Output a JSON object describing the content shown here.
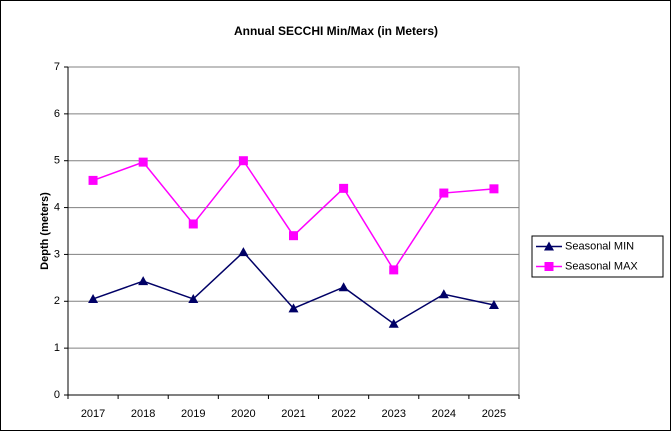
{
  "chart_data": {
    "type": "line",
    "title": "Annual SECCHI Min/Max (in Meters)",
    "y_label": "Depth (meters)",
    "categories": [
      "2017",
      "2018",
      "2019",
      "2020",
      "2021",
      "2022",
      "2023",
      "2024",
      "2025"
    ],
    "series": [
      {
        "name": "Seasonal MIN",
        "color": "#000066",
        "marker": "triangle",
        "values": [
          2.05,
          2.43,
          2.05,
          3.05,
          1.85,
          2.3,
          1.52,
          2.15,
          1.92
        ]
      },
      {
        "name": "Seasonal MAX",
        "color": "#ff00ff",
        "marker": "square",
        "values": [
          4.58,
          4.97,
          3.65,
          5.0,
          3.4,
          4.41,
          2.67,
          4.31,
          4.4
        ]
      }
    ],
    "ylim": [
      0,
      7
    ],
    "yticks": [
      0,
      1,
      2,
      3,
      4,
      5,
      6,
      7
    ],
    "grid": true,
    "legend": "right"
  }
}
